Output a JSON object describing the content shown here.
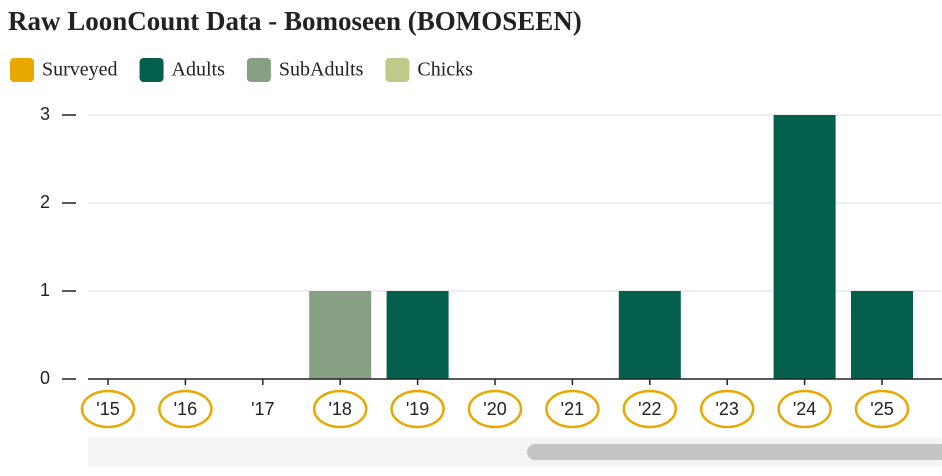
{
  "chart_data": {
    "type": "bar",
    "stacked": true,
    "title": "Raw LoonCount Data - Bomoseen (BOMOSEEN)",
    "categories": [
      "'15",
      "'16",
      "'17",
      "'18",
      "'19",
      "'20",
      "'21",
      "'22",
      "'23",
      "'24",
      "'25"
    ],
    "surveyed": {
      "name": "Surveyed",
      "color": "#e8a800",
      "values": [
        true,
        true,
        false,
        true,
        true,
        true,
        true,
        true,
        true,
        true,
        true
      ]
    },
    "series": [
      {
        "name": "Adults",
        "color": "#045f4d",
        "values": [
          0,
          0,
          0,
          0,
          1,
          0,
          0,
          1,
          0,
          3,
          1
        ]
      },
      {
        "name": "SubAdults",
        "color": "#87a083",
        "values": [
          0,
          0,
          0,
          1,
          0,
          0,
          0,
          0,
          0,
          0,
          0
        ]
      },
      {
        "name": "Chicks",
        "color": "#bfc98a",
        "values": [
          0,
          0,
          0,
          0,
          0,
          0,
          0,
          0,
          0,
          0,
          0
        ]
      }
    ],
    "ylim": [
      0,
      3
    ],
    "yticks": [
      0,
      1,
      2,
      3
    ],
    "grid": true
  }
}
